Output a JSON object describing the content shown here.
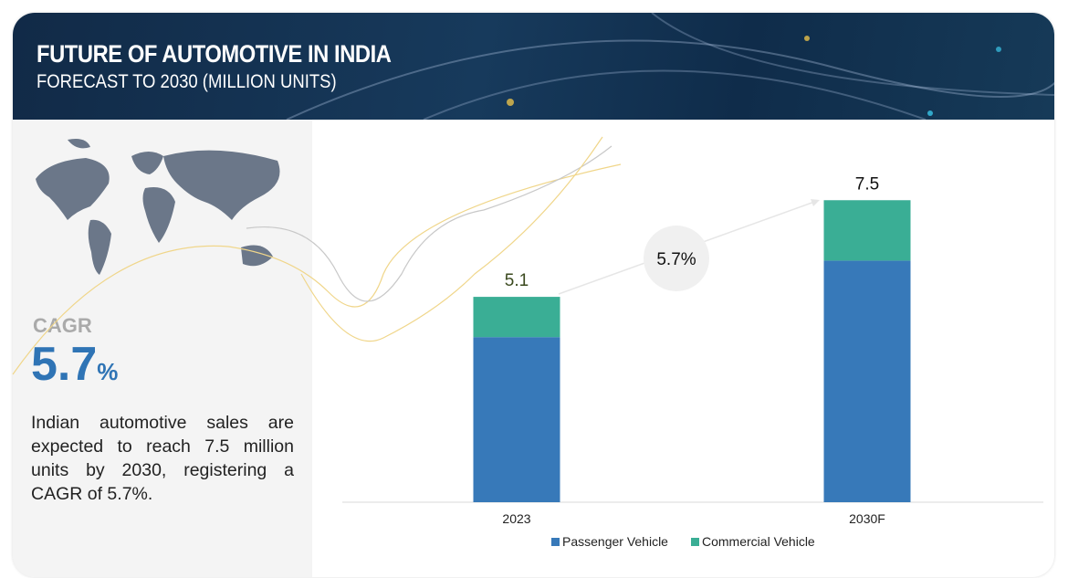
{
  "header": {
    "title": "FUTURE OF AUTOMOTIVE IN INDIA",
    "subtitle": "FORECAST TO 2030 (MILLION UNITS)"
  },
  "left": {
    "cagr_label": "CAGR",
    "cagr_value": "5.7",
    "cagr_unit": "%",
    "description": "Indian automotive sales are expected to reach 7.5 million units by 2030, registering a CAGR of 5.7%."
  },
  "chart_data": {
    "type": "bar",
    "stacked": true,
    "categories": [
      "2023",
      "2030F"
    ],
    "series": [
      {
        "name": "Passenger Vehicle",
        "values": [
          4.1,
          6.0
        ],
        "color": "#3779b9"
      },
      {
        "name": "Commercial Vehicle",
        "values": [
          1.0,
          1.5
        ],
        "color": "#3aae95"
      }
    ],
    "totals": [
      "5.1",
      "7.5"
    ],
    "annotation": "5.7%",
    "legend": "bottom",
    "grid": false
  }
}
